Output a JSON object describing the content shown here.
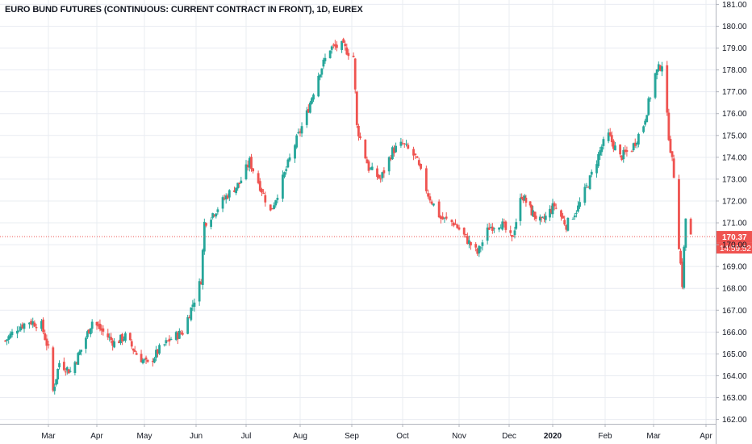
{
  "chart": {
    "title": "EURO BUND FUTURES (CONTINUOUS: CURRENT CONTRACT IN FRONT), 1D, EUREX",
    "price_label": "170.37",
    "countdown_label": "14:59:52"
  },
  "colors": {
    "up": "#26a69a",
    "down": "#ef5350",
    "grid": "#e9ecf2",
    "axis_text": "#131722",
    "price_line": "#ef5350"
  },
  "chart_data": {
    "type": "candlestick",
    "title": "EURO BUND FUTURES (CONTINUOUS: CURRENT CONTRACT IN FRONT), 1D, EUREX",
    "xlabel": "",
    "ylabel": "",
    "ylim": [
      161.8,
      181.2
    ],
    "y_ticks": [
      162,
      163,
      164,
      165,
      166,
      167,
      168,
      169,
      170,
      171,
      172,
      173,
      174,
      175,
      176,
      177,
      178,
      179,
      180,
      181
    ],
    "y_tick_labels": [
      "162.00",
      "163.00",
      "164.00",
      "165.00",
      "166.00",
      "167.00",
      "168.00",
      "169.00",
      "170.00",
      "171.00",
      "172.00",
      "173.00",
      "174.00",
      "175.00",
      "176.00",
      "177.00",
      "178.00",
      "179.00",
      "180.00",
      "181.00"
    ],
    "x_tick_labels": [
      "Mar",
      "Apr",
      "May",
      "Jun",
      "Jul",
      "Aug",
      "Sep",
      "Oct",
      "Nov",
      "Dec",
      "2020",
      "Feb",
      "Mar",
      "Apr"
    ],
    "x_tick_bold": [
      false,
      false,
      false,
      false,
      false,
      false,
      false,
      false,
      false,
      false,
      true,
      false,
      false,
      false
    ],
    "last_price": 170.37,
    "grid": true,
    "series": [
      {
        "close_path": [
          [
            "2019-02-04",
            165.6
          ],
          [
            "2019-02-11",
            166.2
          ],
          [
            "2019-02-18",
            166.5
          ],
          [
            "2019-02-25",
            166.3
          ],
          [
            "2019-03-01",
            165.2
          ],
          [
            "2019-03-04",
            163.3
          ],
          [
            "2019-03-08",
            164.6
          ],
          [
            "2019-03-15",
            164.2
          ],
          [
            "2019-03-22",
            165.2
          ],
          [
            "2019-03-29",
            166.5
          ],
          [
            "2019-04-05",
            166.0
          ],
          [
            "2019-04-12",
            165.5
          ],
          [
            "2019-04-19",
            165.8
          ],
          [
            "2019-04-26",
            165.0
          ],
          [
            "2019-05-03",
            164.5
          ],
          [
            "2019-05-10",
            165.2
          ],
          [
            "2019-05-17",
            165.7
          ],
          [
            "2019-05-24",
            166.0
          ],
          [
            "2019-05-31",
            167.5
          ],
          [
            "2019-06-04",
            168.4
          ],
          [
            "2019-06-06",
            171.0
          ],
          [
            "2019-06-13",
            171.6
          ],
          [
            "2019-06-20",
            172.3
          ],
          [
            "2019-06-27",
            172.8
          ],
          [
            "2019-07-03",
            173.8
          ],
          [
            "2019-07-10",
            172.5
          ],
          [
            "2019-07-15",
            171.5
          ],
          [
            "2019-07-22",
            173.0
          ],
          [
            "2019-07-29",
            174.6
          ],
          [
            "2019-08-05",
            176.0
          ],
          [
            "2019-08-12",
            177.8
          ],
          [
            "2019-08-19",
            179.0
          ],
          [
            "2019-08-26",
            179.1
          ],
          [
            "2019-09-02",
            178.6
          ],
          [
            "2019-09-04",
            175.4
          ],
          [
            "2019-09-11",
            173.5
          ],
          [
            "2019-09-18",
            173.0
          ],
          [
            "2019-09-25",
            174.3
          ],
          [
            "2019-10-01",
            174.6
          ],
          [
            "2019-10-08",
            174.0
          ],
          [
            "2019-10-15",
            172.3
          ],
          [
            "2019-10-22",
            171.2
          ],
          [
            "2019-10-29",
            171.0
          ],
          [
            "2019-11-05",
            170.3
          ],
          [
            "2019-11-12",
            169.6
          ],
          [
            "2019-11-19",
            170.8
          ],
          [
            "2019-11-26",
            171.0
          ],
          [
            "2019-12-03",
            170.2
          ],
          [
            "2019-12-10",
            172.3
          ],
          [
            "2019-12-17",
            171.5
          ],
          [
            "2019-12-24",
            171.0
          ],
          [
            "2020-01-02",
            171.8
          ],
          [
            "2020-01-09",
            170.9
          ],
          [
            "2020-01-16",
            171.7
          ],
          [
            "2020-01-23",
            173.0
          ],
          [
            "2020-01-30",
            174.5
          ],
          [
            "2020-02-03",
            175.0
          ],
          [
            "2020-02-10",
            174.0
          ],
          [
            "2020-02-17",
            174.4
          ],
          [
            "2020-02-24",
            175.5
          ],
          [
            "2020-03-02",
            177.8
          ],
          [
            "2020-03-06",
            178.3
          ],
          [
            "2020-03-10",
            175.0
          ],
          [
            "2020-03-13",
            173.2
          ],
          [
            "2020-03-16",
            170.0
          ],
          [
            "2020-03-18",
            168.2
          ],
          [
            "2020-03-19",
            169.8
          ],
          [
            "2020-03-20",
            171.2
          ],
          [
            "2020-03-23",
            170.37
          ]
        ]
      }
    ]
  }
}
